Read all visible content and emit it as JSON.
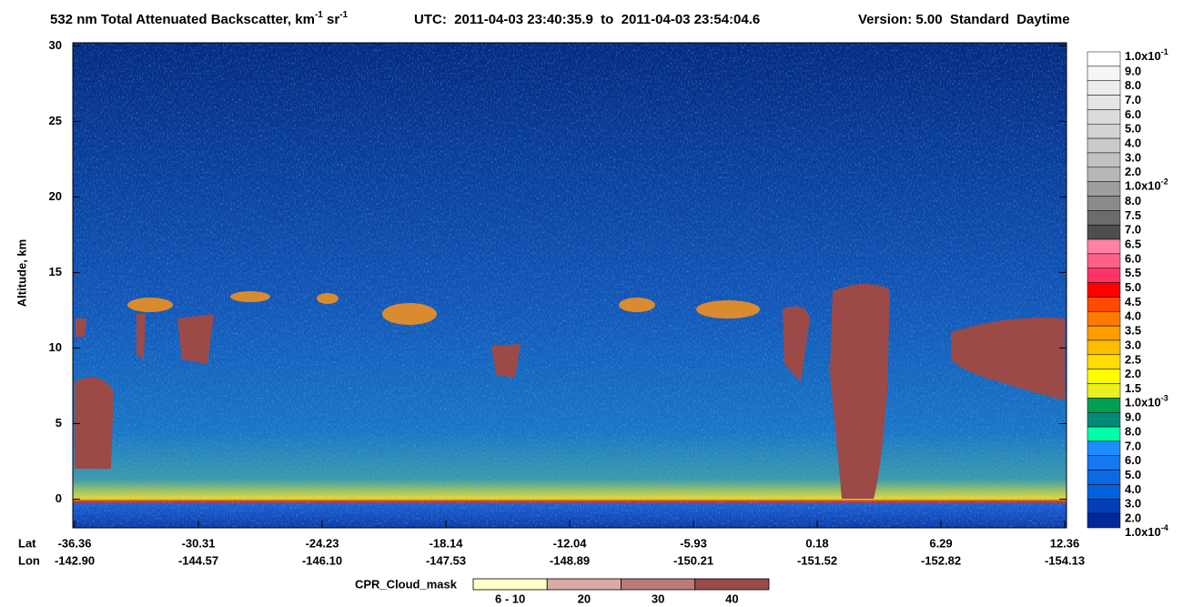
{
  "chart_data": {
    "type": "heatmap",
    "title_parts": [
      {
        "text": "532 nm Total Attenuated Backscatter, km"
      },
      {
        "text": "-1",
        "sup": true
      },
      {
        "text": " sr"
      },
      {
        "text": "-1",
        "sup": true
      }
    ],
    "utc": "UTC:  2011-04-03 23:40:35.9  to  2011-04-03 23:54:04.6",
    "version": "Version: 5.00  Standard  Daytime",
    "ylabel": "Altitude, km",
    "ylim": [
      -1.9,
      30.2
    ],
    "yticks": [
      0,
      5,
      10,
      15,
      20,
      25,
      30
    ],
    "x_rows": [
      {
        "name": "Lat",
        "labels": [
          "-36.36",
          "-30.31",
          "-24.23",
          "-18.14",
          "-12.04",
          "-5.93",
          "0.18",
          "6.29",
          "12.36"
        ]
      },
      {
        "name": "Lon",
        "labels": [
          "-142.90",
          "-144.57",
          "-146.10",
          "-147.53",
          "-148.89",
          "-150.21",
          "-151.52",
          "-152.82",
          "-154.13"
        ]
      }
    ],
    "colorbar": {
      "labels": [
        {
          "text": "1.0x10",
          "sup": "-1"
        },
        "9.0",
        "8.0",
        "7.0",
        "6.0",
        "5.0",
        "4.0",
        "3.0",
        "2.0",
        {
          "text": "1.0x10",
          "sup": "-2"
        },
        "8.0",
        "7.5",
        "7.0",
        "6.5",
        "6.0",
        "5.5",
        "5.0",
        "4.5",
        "4.0",
        "3.5",
        "3.0",
        "2.5",
        "2.0",
        "1.5",
        {
          "text": "1.0x10",
          "sup": "-3"
        },
        "9.0",
        "8.0",
        "7.0",
        "6.0",
        "5.0",
        "4.0",
        "3.0",
        "2.0",
        {
          "text": "1.0x10",
          "sup": "-4"
        }
      ],
      "colors": [
        "#ffffff",
        "#f5f5f5",
        "#ededed",
        "#e5e5e5",
        "#dcdcdc",
        "#d3d3d3",
        "#cacaca",
        "#c1c1c1",
        "#b7b7b7",
        "#9e9e9e",
        "#8a8a8a",
        "#6c6c6c",
        "#4e4e4e",
        "#ff82a4",
        "#ff6088",
        "#ff3366",
        "#ff0000",
        "#ff4a00",
        "#ff7a00",
        "#ff9c00",
        "#ffbd00",
        "#ffdd00",
        "#ffff00",
        "#e8f020",
        "#00a050",
        "#008a78",
        "#00ffa8",
        "#1e8cff",
        "#1478f0",
        "#0a6ae6",
        "#0062dc",
        "#0040b4",
        "#00289a"
      ]
    },
    "cloud_mask": {
      "title": "CPR_Cloud_mask",
      "labels": [
        "6 - 10",
        "20",
        "30",
        "40"
      ],
      "colors": [
        "#ffffc8",
        "#d9aaa8",
        "#bb7a78",
        "#9c4a48"
      ]
    }
  }
}
